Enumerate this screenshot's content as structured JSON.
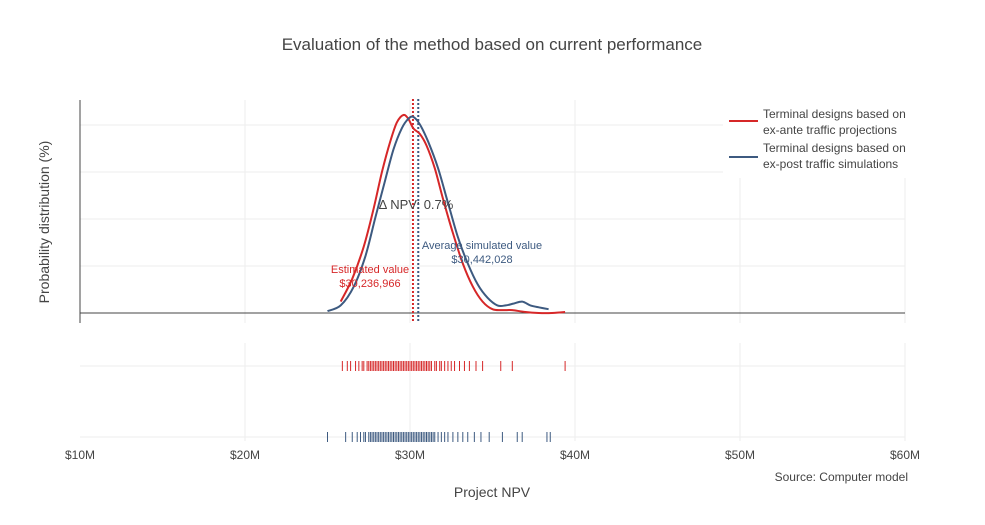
{
  "chart_data": {
    "type": "line",
    "title": "Evaluation of the method based on current performance",
    "xlabel": "Project NPV",
    "ylabel": "Probability distribution (%)",
    "xlim": [
      10,
      60
    ],
    "x_ticks": [
      10,
      20,
      30,
      40,
      50,
      60
    ],
    "x_tick_labels": [
      "$10M",
      "$20M",
      "$30M",
      "$40M",
      "$50M",
      "$60M"
    ],
    "grid": true,
    "legend_position": "top-right",
    "series": [
      {
        "name": "Terminal designs based on ex-ante traffic projections",
        "legend_lines": [
          "Terminal designs based on",
          "ex-ante traffic projections"
        ],
        "color": "#d62728",
        "x": [
          25.8,
          26.5,
          27.2,
          27.8,
          28.3,
          28.8,
          29.2,
          29.6,
          29.9,
          30.2,
          30.6,
          31.0,
          31.5,
          32.0,
          32.6,
          33.2,
          33.8,
          34.4,
          35.0,
          35.6,
          36.2,
          37.0,
          37.8,
          38.6,
          39.4
        ],
        "y": [
          0.06,
          0.18,
          0.35,
          0.55,
          0.74,
          0.9,
          1.0,
          1.04,
          1.02,
          0.97,
          0.94,
          0.88,
          0.76,
          0.6,
          0.42,
          0.26,
          0.14,
          0.06,
          0.02,
          0.015,
          0.015,
          0.005,
          0.0,
          0.0,
          0.005
        ]
      },
      {
        "name": "Terminal designs based on ex-post traffic simulations",
        "legend_lines": [
          "Terminal designs based on",
          "ex-post traffic simulations"
        ],
        "color": "#3d5a80",
        "x": [
          25.0,
          25.8,
          26.6,
          27.3,
          27.9,
          28.5,
          29.0,
          29.5,
          29.9,
          30.2,
          30.6,
          31.1,
          31.7,
          32.3,
          32.9,
          33.5,
          34.1,
          34.7,
          35.3,
          35.8,
          36.3,
          36.8,
          37.3,
          37.8,
          38.4
        ],
        "y": [
          0.01,
          0.04,
          0.14,
          0.3,
          0.5,
          0.7,
          0.86,
          0.97,
          1.02,
          1.03,
          0.99,
          0.9,
          0.76,
          0.58,
          0.4,
          0.26,
          0.15,
          0.08,
          0.04,
          0.04,
          0.05,
          0.06,
          0.04,
          0.03,
          0.02
        ]
      }
    ],
    "vlines": [
      {
        "series": 0,
        "x": 30.24,
        "color": "#d62728"
      },
      {
        "series": 1,
        "x": 30.44,
        "color": "#3d5a80"
      }
    ],
    "annotations": {
      "estimated": {
        "lines": [
          "Estimated value",
          "$30,236,966"
        ],
        "color": "#d62728"
      },
      "simulated": {
        "lines": [
          "Average simulated value",
          "$30,442,028"
        ],
        "color": "#3d5a80"
      },
      "delta": "Δ NPV: 0.7%"
    },
    "rug": {
      "red": {
        "color": "#d62728",
        "x": [
          25.9,
          26.2,
          26.4,
          26.7,
          26.9,
          27.1,
          27.2,
          27.4,
          27.5,
          27.6,
          27.7,
          27.8,
          27.9,
          28.0,
          28.1,
          28.2,
          28.3,
          28.4,
          28.5,
          28.6,
          28.7,
          28.8,
          28.9,
          29.0,
          29.1,
          29.2,
          29.3,
          29.4,
          29.5,
          29.6,
          29.7,
          29.8,
          29.9,
          30.0,
          30.1,
          30.2,
          30.3,
          30.4,
          30.5,
          30.6,
          30.7,
          30.8,
          30.9,
          31.0,
          31.1,
          31.2,
          31.3,
          31.5,
          31.6,
          31.8,
          31.9,
          32.1,
          32.3,
          32.5,
          32.7,
          33.0,
          33.3,
          33.6,
          34.0,
          34.4,
          35.5,
          36.2,
          39.4
        ]
      },
      "blue": {
        "color": "#3d5a80",
        "x": [
          25.0,
          26.1,
          26.5,
          26.8,
          27.0,
          27.2,
          27.3,
          27.5,
          27.6,
          27.7,
          27.8,
          27.9,
          28.0,
          28.1,
          28.2,
          28.3,
          28.4,
          28.5,
          28.6,
          28.7,
          28.8,
          28.9,
          29.0,
          29.1,
          29.2,
          29.3,
          29.4,
          29.5,
          29.6,
          29.7,
          29.8,
          29.9,
          30.0,
          30.1,
          30.2,
          30.3,
          30.4,
          30.5,
          30.6,
          30.7,
          30.8,
          30.9,
          31.0,
          31.1,
          31.2,
          31.3,
          31.4,
          31.5,
          31.7,
          31.9,
          32.1,
          32.3,
          32.6,
          32.9,
          33.2,
          33.5,
          33.9,
          34.3,
          34.8,
          35.6,
          36.5,
          36.8,
          38.3,
          38.5
        ]
      }
    },
    "source": "Source: Computer model"
  }
}
